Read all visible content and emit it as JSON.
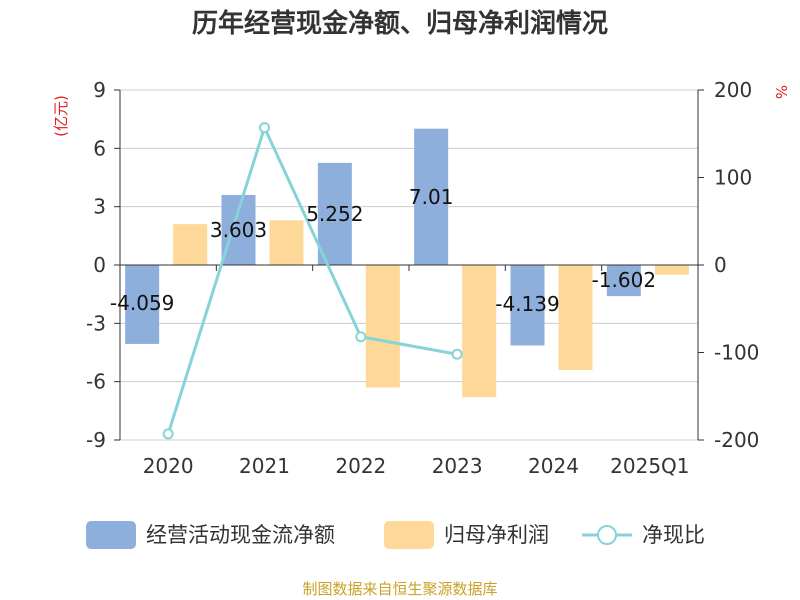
{
  "title": "历年经营现金净额、归母净利润情况",
  "source": "制图数据来自恒生聚源数据库",
  "chart_data": {
    "type": "bar",
    "categories": [
      "2020",
      "2021",
      "2022",
      "2023",
      "2024",
      "2025Q1"
    ],
    "left_axis": {
      "unit": "(亿元)",
      "ylim": [
        -9,
        9
      ],
      "ticks": [
        9,
        6,
        3,
        0,
        -3,
        -6,
        -9
      ]
    },
    "right_axis": {
      "unit": "%",
      "ylim": [
        -200,
        200
      ],
      "ticks": [
        200,
        100,
        0,
        -100,
        -200
      ]
    },
    "series": [
      {
        "name": "经营活动现金流净额",
        "type": "bar",
        "axis": "left",
        "color": "#8eaedc",
        "values": [
          -4.059,
          3.603,
          5.252,
          7.01,
          -4.139,
          -1.602
        ],
        "labels": [
          "-4.059",
          "3.603",
          "5.252",
          "7.01",
          "-4.139",
          "-1.602"
        ]
      },
      {
        "name": "归母净利润",
        "type": "bar",
        "axis": "left",
        "color": "#fdd898",
        "values": [
          2.1,
          2.3,
          -6.3,
          -6.8,
          -5.4,
          -0.5
        ]
      },
      {
        "name": "净现比",
        "type": "line",
        "axis": "right",
        "color": "#86d3d8",
        "values": [
          -193,
          157,
          -82,
          -102,
          null,
          null
        ]
      }
    ],
    "grid": true,
    "legend": "bottom"
  }
}
